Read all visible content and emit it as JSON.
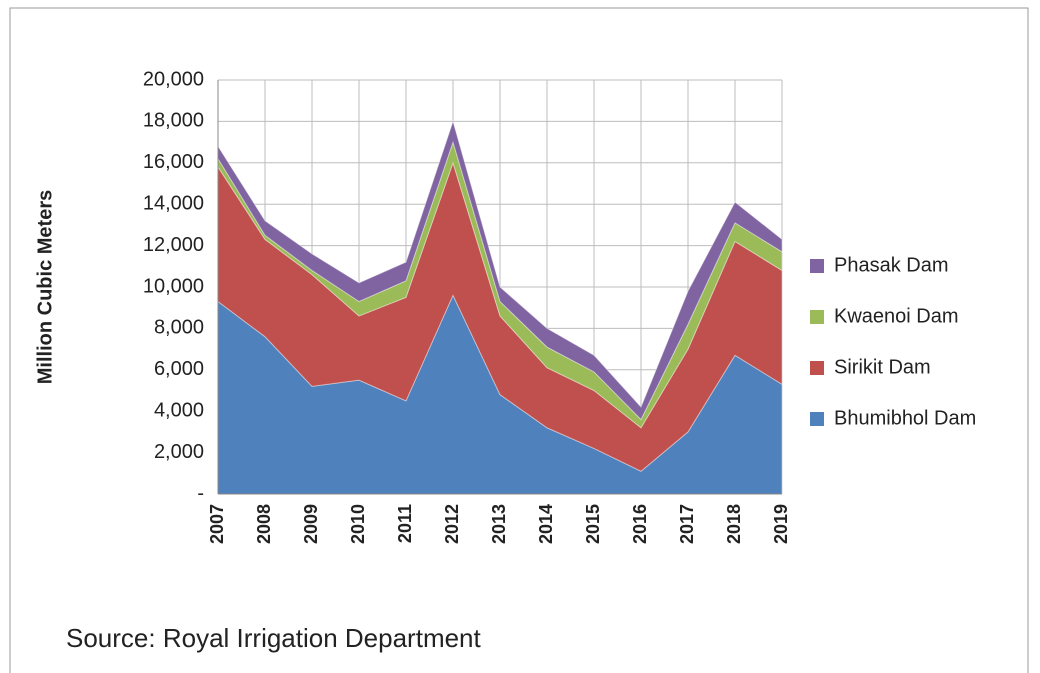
{
  "chart_data": {
    "type": "stacked-area",
    "y_label": "Million Cubic Meters",
    "source": "Source: Royal Irrigation Department",
    "categories": [
      "2007",
      "2008",
      "2009",
      "2010",
      "2011",
      "2012",
      "2013",
      "2014",
      "2015",
      "2016",
      "2017",
      "2018",
      "2019"
    ],
    "series": [
      {
        "name": "Bhumibhol Dam",
        "color": "#4f81bd",
        "values": [
          9300,
          7600,
          5200,
          5500,
          4500,
          9600,
          4800,
          3200,
          2200,
          1100,
          3000,
          6700,
          5300
        ]
      },
      {
        "name": "Sirikit Dam",
        "color": "#c0504d",
        "values": [
          6500,
          4700,
          5400,
          3100,
          5000,
          6400,
          3800,
          2900,
          2800,
          2100,
          4000,
          5500,
          5500
        ]
      },
      {
        "name": "Kwaenoi Dam",
        "color": "#9bbb59",
        "values": [
          400,
          200,
          200,
          700,
          800,
          1000,
          700,
          1000,
          900,
          400,
          1200,
          900,
          900
        ]
      },
      {
        "name": "Phasak Dam",
        "color": "#8064a2",
        "values": [
          600,
          700,
          800,
          900,
          900,
          1000,
          700,
          900,
          800,
          600,
          1600,
          1000,
          600
        ]
      }
    ],
    "ylim": [
      0,
      20000
    ],
    "yticks": [
      {
        "value": 0,
        "label": "-"
      },
      {
        "value": 2000,
        "label": "2,000"
      },
      {
        "value": 4000,
        "label": "4,000"
      },
      {
        "value": 6000,
        "label": "6,000"
      },
      {
        "value": 8000,
        "label": "8,000"
      },
      {
        "value": 10000,
        "label": "10,000"
      },
      {
        "value": 12000,
        "label": "12,000"
      },
      {
        "value": 14000,
        "label": "14,000"
      },
      {
        "value": 16000,
        "label": "16,000"
      },
      {
        "value": 18000,
        "label": "18,000"
      },
      {
        "value": 20000,
        "label": "20,000"
      }
    ],
    "grid": true
  }
}
